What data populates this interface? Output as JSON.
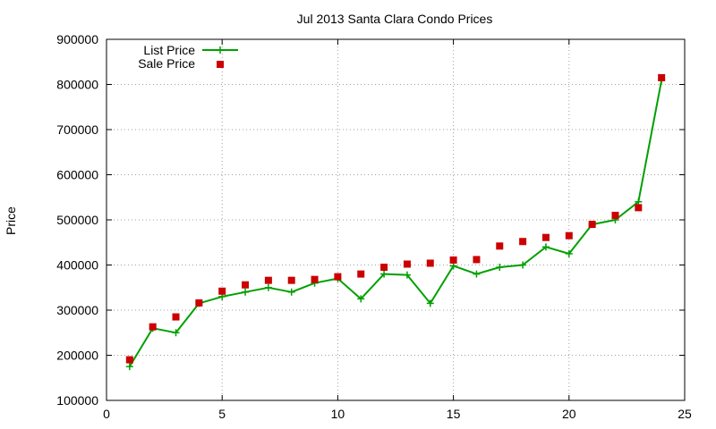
{
  "chart_data": {
    "type": "line",
    "title": "Jul 2013 Santa Clara Condo Prices",
    "xlabel": "",
    "ylabel": "Price",
    "xlim": [
      0,
      25
    ],
    "ylim": [
      100000,
      900000
    ],
    "x_ticks": [
      0,
      5,
      10,
      15,
      20,
      25
    ],
    "y_ticks": [
      100000,
      200000,
      300000,
      400000,
      500000,
      600000,
      700000,
      800000,
      900000
    ],
    "grid": true,
    "legend_position": "top-left",
    "series": [
      {
        "name": "List Price",
        "style": "line-plus",
        "color": "#00a000",
        "x": [
          1,
          2,
          3,
          4,
          5,
          6,
          7,
          8,
          9,
          10,
          11,
          12,
          13,
          14,
          15,
          16,
          17,
          18,
          19,
          20,
          21,
          22,
          23,
          24
        ],
        "values": [
          175000,
          260000,
          250000,
          315000,
          330000,
          340000,
          350000,
          340000,
          360000,
          370000,
          325000,
          380000,
          378000,
          315000,
          398000,
          380000,
          395000,
          400000,
          440000,
          425000,
          490000,
          500000,
          540000,
          810000
        ]
      },
      {
        "name": "Sale Price",
        "style": "square-markers",
        "color": "#cc0000",
        "x": [
          1,
          2,
          3,
          4,
          5,
          6,
          7,
          8,
          9,
          10,
          11,
          12,
          13,
          14,
          15,
          16,
          17,
          18,
          19,
          20,
          21,
          22,
          23,
          24
        ],
        "values": [
          190000,
          263000,
          285000,
          316000,
          342000,
          356000,
          366000,
          366000,
          368000,
          374000,
          380000,
          395000,
          402000,
          404000,
          411000,
          412000,
          442000,
          452000,
          461000,
          465000,
          490000,
          510000,
          527000,
          815000
        ]
      }
    ]
  }
}
